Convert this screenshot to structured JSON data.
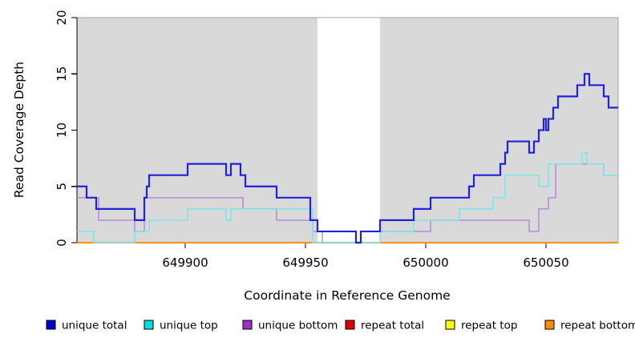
{
  "chart_data": {
    "type": "line",
    "subtype": "step-after",
    "title": "",
    "xlabel": "Coordinate in Reference Genome",
    "ylabel": "Read Coverage Depth",
    "x_range": [
      649855,
      650080
    ],
    "y_range": [
      0,
      20
    ],
    "x_ticks": [
      "649900",
      "649950",
      "650000",
      "650050"
    ],
    "x_tick_values": [
      649900,
      649950,
      650000,
      650050
    ],
    "y_ticks": [
      "0",
      "5",
      "10",
      "15",
      "20"
    ],
    "y_tick_values": [
      0,
      5,
      10,
      15,
      20
    ],
    "grid": "off",
    "plot_bg": "#d9d9d9",
    "no_data_region": {
      "start": 649955,
      "end": 649981,
      "color": "#ffffff"
    },
    "legend_position": "bottom",
    "series": [
      {
        "name": "unique total",
        "color": "#2222dd",
        "legend_color": "#0000cd",
        "width": 2.2,
        "points": [
          [
            649855,
            5
          ],
          [
            649859,
            4
          ],
          [
            649863,
            3
          ],
          [
            649879,
            2
          ],
          [
            649883,
            4
          ],
          [
            649884,
            5
          ],
          [
            649885,
            6
          ],
          [
            649901,
            7
          ],
          [
            649917,
            6
          ],
          [
            649919,
            7
          ],
          [
            649923,
            6
          ],
          [
            649925,
            5
          ],
          [
            649938,
            4
          ],
          [
            649952,
            2
          ],
          [
            649955,
            1
          ],
          [
            649971,
            0
          ],
          [
            649973,
            1
          ],
          [
            649981,
            2
          ],
          [
            649995,
            3
          ],
          [
            650002,
            4
          ],
          [
            650018,
            5
          ],
          [
            650020,
            6
          ],
          [
            650031,
            7
          ],
          [
            650033,
            8
          ],
          [
            650034,
            9
          ],
          [
            650043,
            8
          ],
          [
            650045,
            9
          ],
          [
            650047,
            10
          ],
          [
            650049,
            11
          ],
          [
            650050,
            10
          ],
          [
            650051,
            11
          ],
          [
            650053,
            12
          ],
          [
            650055,
            13
          ],
          [
            650063,
            14
          ],
          [
            650066,
            15
          ],
          [
            650068,
            14
          ],
          [
            650074,
            13
          ],
          [
            650076,
            12
          ]
        ]
      },
      {
        "name": "unique top",
        "color": "#72e8e8",
        "legend_color": "#00dddd",
        "width": 1.4,
        "points": [
          [
            649855,
            1
          ],
          [
            649862,
            0
          ],
          [
            649879,
            1
          ],
          [
            649885,
            2
          ],
          [
            649901,
            3
          ],
          [
            649917,
            2
          ],
          [
            649919,
            3
          ],
          [
            649953,
            0
          ],
          [
            649981,
            1
          ],
          [
            649995,
            2
          ],
          [
            650014,
            3
          ],
          [
            650028,
            4
          ],
          [
            650033,
            6
          ],
          [
            650047,
            5
          ],
          [
            650051,
            7
          ],
          [
            650065,
            8
          ],
          [
            650067,
            7
          ],
          [
            650074,
            6
          ]
        ]
      },
      {
        "name": "unique bottom",
        "color": "#b385d6",
        "legend_color": "#9932cc",
        "width": 1.4,
        "points": [
          [
            649855,
            4
          ],
          [
            649864,
            2
          ],
          [
            649879,
            1
          ],
          [
            649883,
            4
          ],
          [
            649924,
            3
          ],
          [
            649938,
            2
          ],
          [
            649953,
            1
          ],
          [
            649957,
            0
          ],
          [
            649973,
            1
          ],
          [
            650002,
            2
          ],
          [
            650043,
            1
          ],
          [
            650047,
            3
          ],
          [
            650051,
            4
          ],
          [
            650054,
            7
          ],
          [
            650074,
            6
          ]
        ]
      },
      {
        "name": "repeat total",
        "color": "#cc1111",
        "legend_color": "#dd0000",
        "width": 1.4,
        "points": [
          [
            649855,
            0
          ]
        ]
      },
      {
        "name": "repeat top",
        "color": "#f5f500",
        "legend_color": "#ffff00",
        "width": 1.4,
        "points": [
          [
            649855,
            0
          ]
        ]
      },
      {
        "name": "repeat bottom",
        "color": "#ff8c00",
        "legend_color": "#ff8c00",
        "width": 1.8,
        "points": [
          [
            649855,
            0
          ]
        ]
      }
    ]
  }
}
